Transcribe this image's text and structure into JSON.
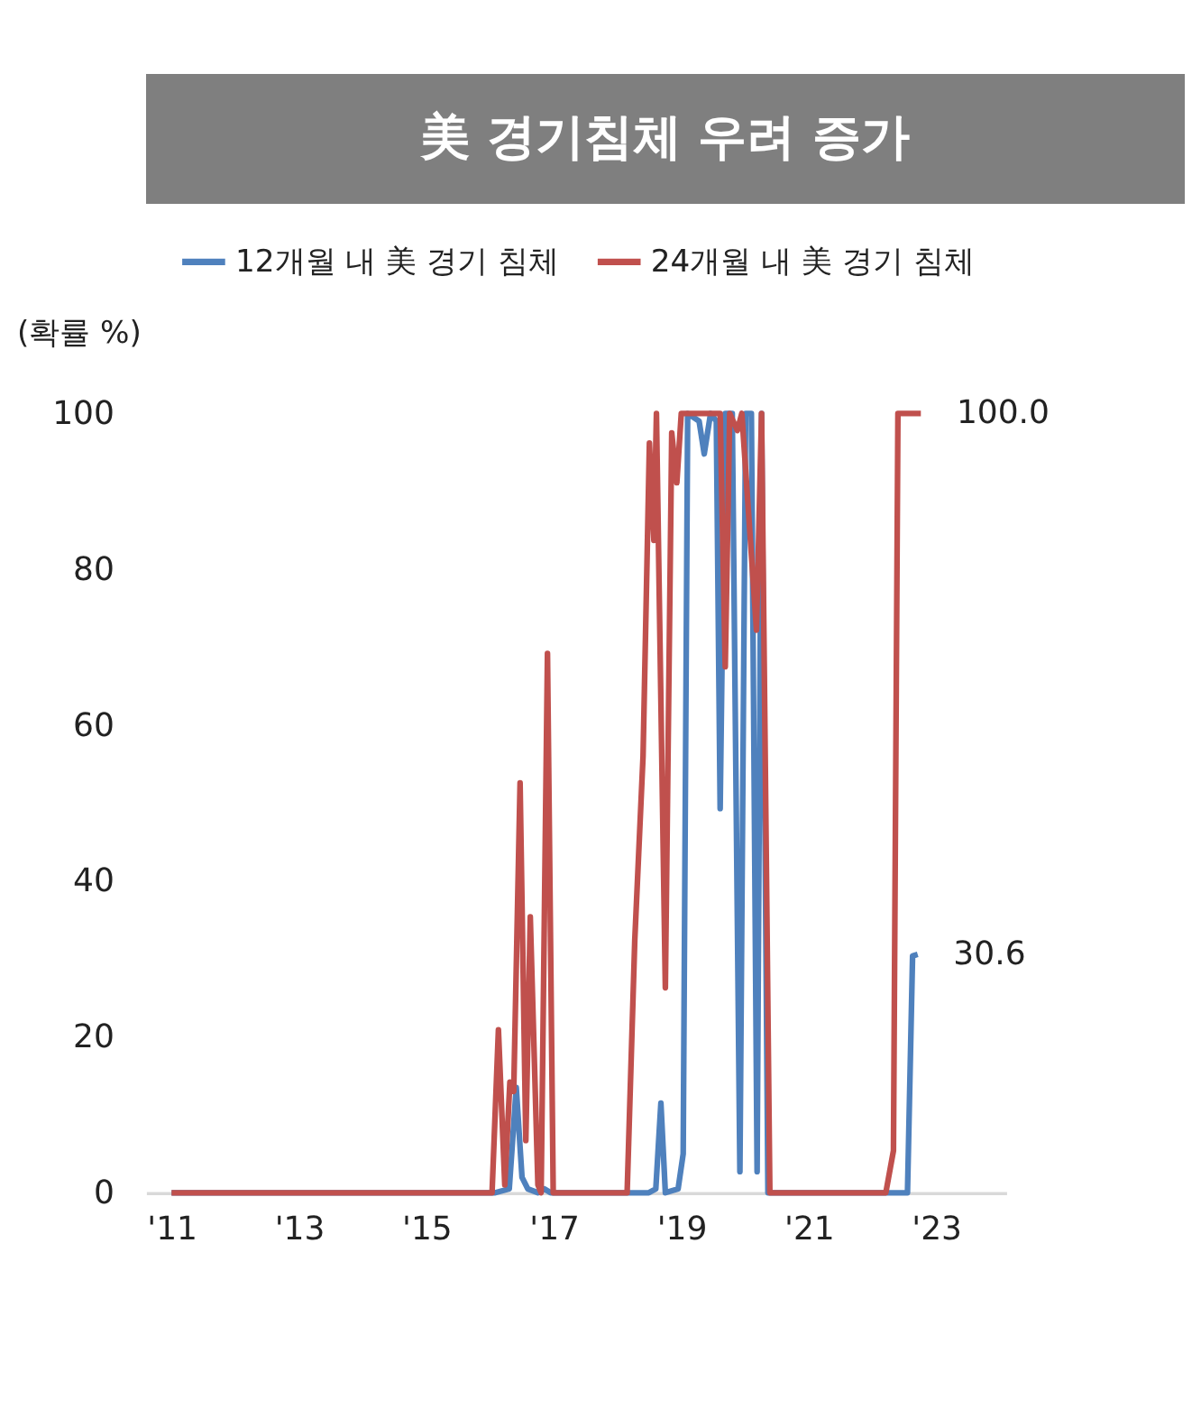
{
  "chart_data": {
    "type": "line",
    "title": "美 경기침체 우려 증가",
    "ylabel": "(확률 %)",
    "series": [
      {
        "name": "12개월 내 美 경기 침체",
        "color": "#4f81bd",
        "x": [
          2011.0,
          2016.08,
          2016.3,
          2016.41,
          2016.5,
          2016.59,
          2016.75,
          2016.85,
          2016.95,
          2018.49,
          2018.6,
          2018.68,
          2018.75,
          2018.95,
          2019.03,
          2019.1,
          2019.28,
          2019.36,
          2019.46,
          2019.55,
          2019.61,
          2019.69,
          2019.8,
          2019.92,
          2020.01,
          2020.1,
          2020.19,
          2020.26,
          2020.36,
          2022.55,
          2022.63,
          2022.71
        ],
        "values": [
          0,
          0,
          0.5,
          13.5,
          2,
          0.5,
          0,
          0.5,
          0,
          0,
          0.5,
          11.5,
          0,
          0.5,
          5,
          100,
          99,
          94.8,
          100,
          99,
          49.3,
          100,
          100,
          2.7,
          100,
          100,
          2.7,
          100,
          0,
          0,
          30.4,
          30.6
        ]
      },
      {
        "name": "24개월 내 美 경기 침체",
        "color": "#c0504d",
        "x": [
          2011.0,
          2016.03,
          2016.13,
          2016.23,
          2016.31,
          2016.37,
          2016.47,
          2016.56,
          2016.63,
          2016.75,
          2016.8,
          2016.9,
          2016.99,
          2018.15,
          2018.27,
          2018.4,
          2018.5,
          2018.57,
          2018.61,
          2018.75,
          2018.85,
          2018.93,
          2019.0,
          2019.61,
          2019.69,
          2019.76,
          2019.88,
          2019.95,
          2020.18,
          2020.26,
          2020.39,
          2022.21,
          2022.33,
          2022.4,
          2022.76
        ],
        "values": [
          0,
          0,
          20.9,
          1,
          14.2,
          13,
          52.6,
          6.7,
          35.4,
          1,
          0,
          69.2,
          0,
          0,
          32.4,
          56,
          96.2,
          83.7,
          100,
          26.3,
          97.5,
          91.1,
          100,
          100,
          67.5,
          100,
          97.8,
          100,
          72.2,
          100,
          0,
          0,
          5.4,
          100,
          100
        ]
      }
    ],
    "xlim": [
      2010.6,
      2024.1
    ],
    "xticks": [
      {
        "value": 2011,
        "label": "'11"
      },
      {
        "value": 2013,
        "label": "'13"
      },
      {
        "value": 2015,
        "label": "'15"
      },
      {
        "value": 2017,
        "label": "'17"
      },
      {
        "value": 2019,
        "label": "'19"
      },
      {
        "value": 2021,
        "label": "'21"
      },
      {
        "value": 2023,
        "label": "'23"
      }
    ],
    "ylim": [
      0,
      100
    ],
    "yticks": [
      0,
      20,
      40,
      60,
      80,
      100
    ],
    "annotations": [
      {
        "text": "100.0",
        "x": 2022.76,
        "y": 100
      },
      {
        "text": "30.6",
        "x": 2022.71,
        "y": 30.6
      }
    ],
    "legend": "top",
    "grid": false,
    "marker": "none",
    "line_style": "solid"
  }
}
